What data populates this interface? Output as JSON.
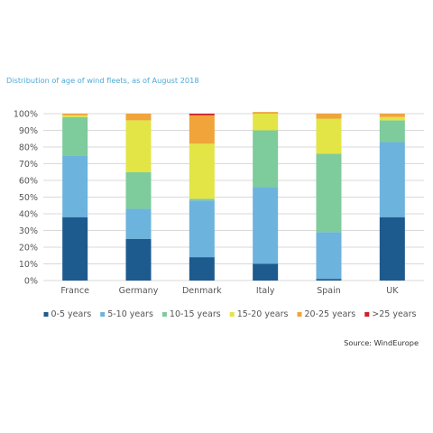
{
  "chart_data": {
    "type": "bar",
    "stacked": true,
    "title": "Distribution of age of wind fleets, as of August 2018",
    "source": "Source: WindEurope",
    "categories": [
      "France",
      "Germany",
      "Denmark",
      "Italy",
      "Spain",
      "UK"
    ],
    "ylim": [
      0,
      100
    ],
    "yticks": [
      "0%",
      "10%",
      "20%",
      "30%",
      "40%",
      "50%",
      "60%",
      "70%",
      "80%",
      "90%",
      "100%"
    ],
    "grid": true,
    "legend_position": "bottom",
    "series": [
      {
        "name": "0-5 years",
        "color": "#1d5a8e",
        "values": [
          38,
          25,
          14,
          10,
          1,
          38
        ]
      },
      {
        "name": "5-10 years",
        "color": "#6cb3dd",
        "values": [
          37,
          18,
          34,
          46,
          28,
          45
        ]
      },
      {
        "name": "10-15 years",
        "color": "#7ecb9c",
        "values": [
          23,
          22,
          1,
          34,
          47,
          13
        ]
      },
      {
        "name": "15-20 years",
        "color": "#e2e545",
        "values": [
          1,
          31,
          33,
          10,
          21,
          2
        ]
      },
      {
        "name": "20-25 years",
        "color": "#f0a43a",
        "values": [
          1,
          4,
          17,
          1,
          3,
          2
        ]
      },
      {
        "name": ">25 years",
        "color": "#d0202a",
        "values": [
          0,
          0,
          1,
          0,
          0,
          0
        ]
      }
    ]
  }
}
